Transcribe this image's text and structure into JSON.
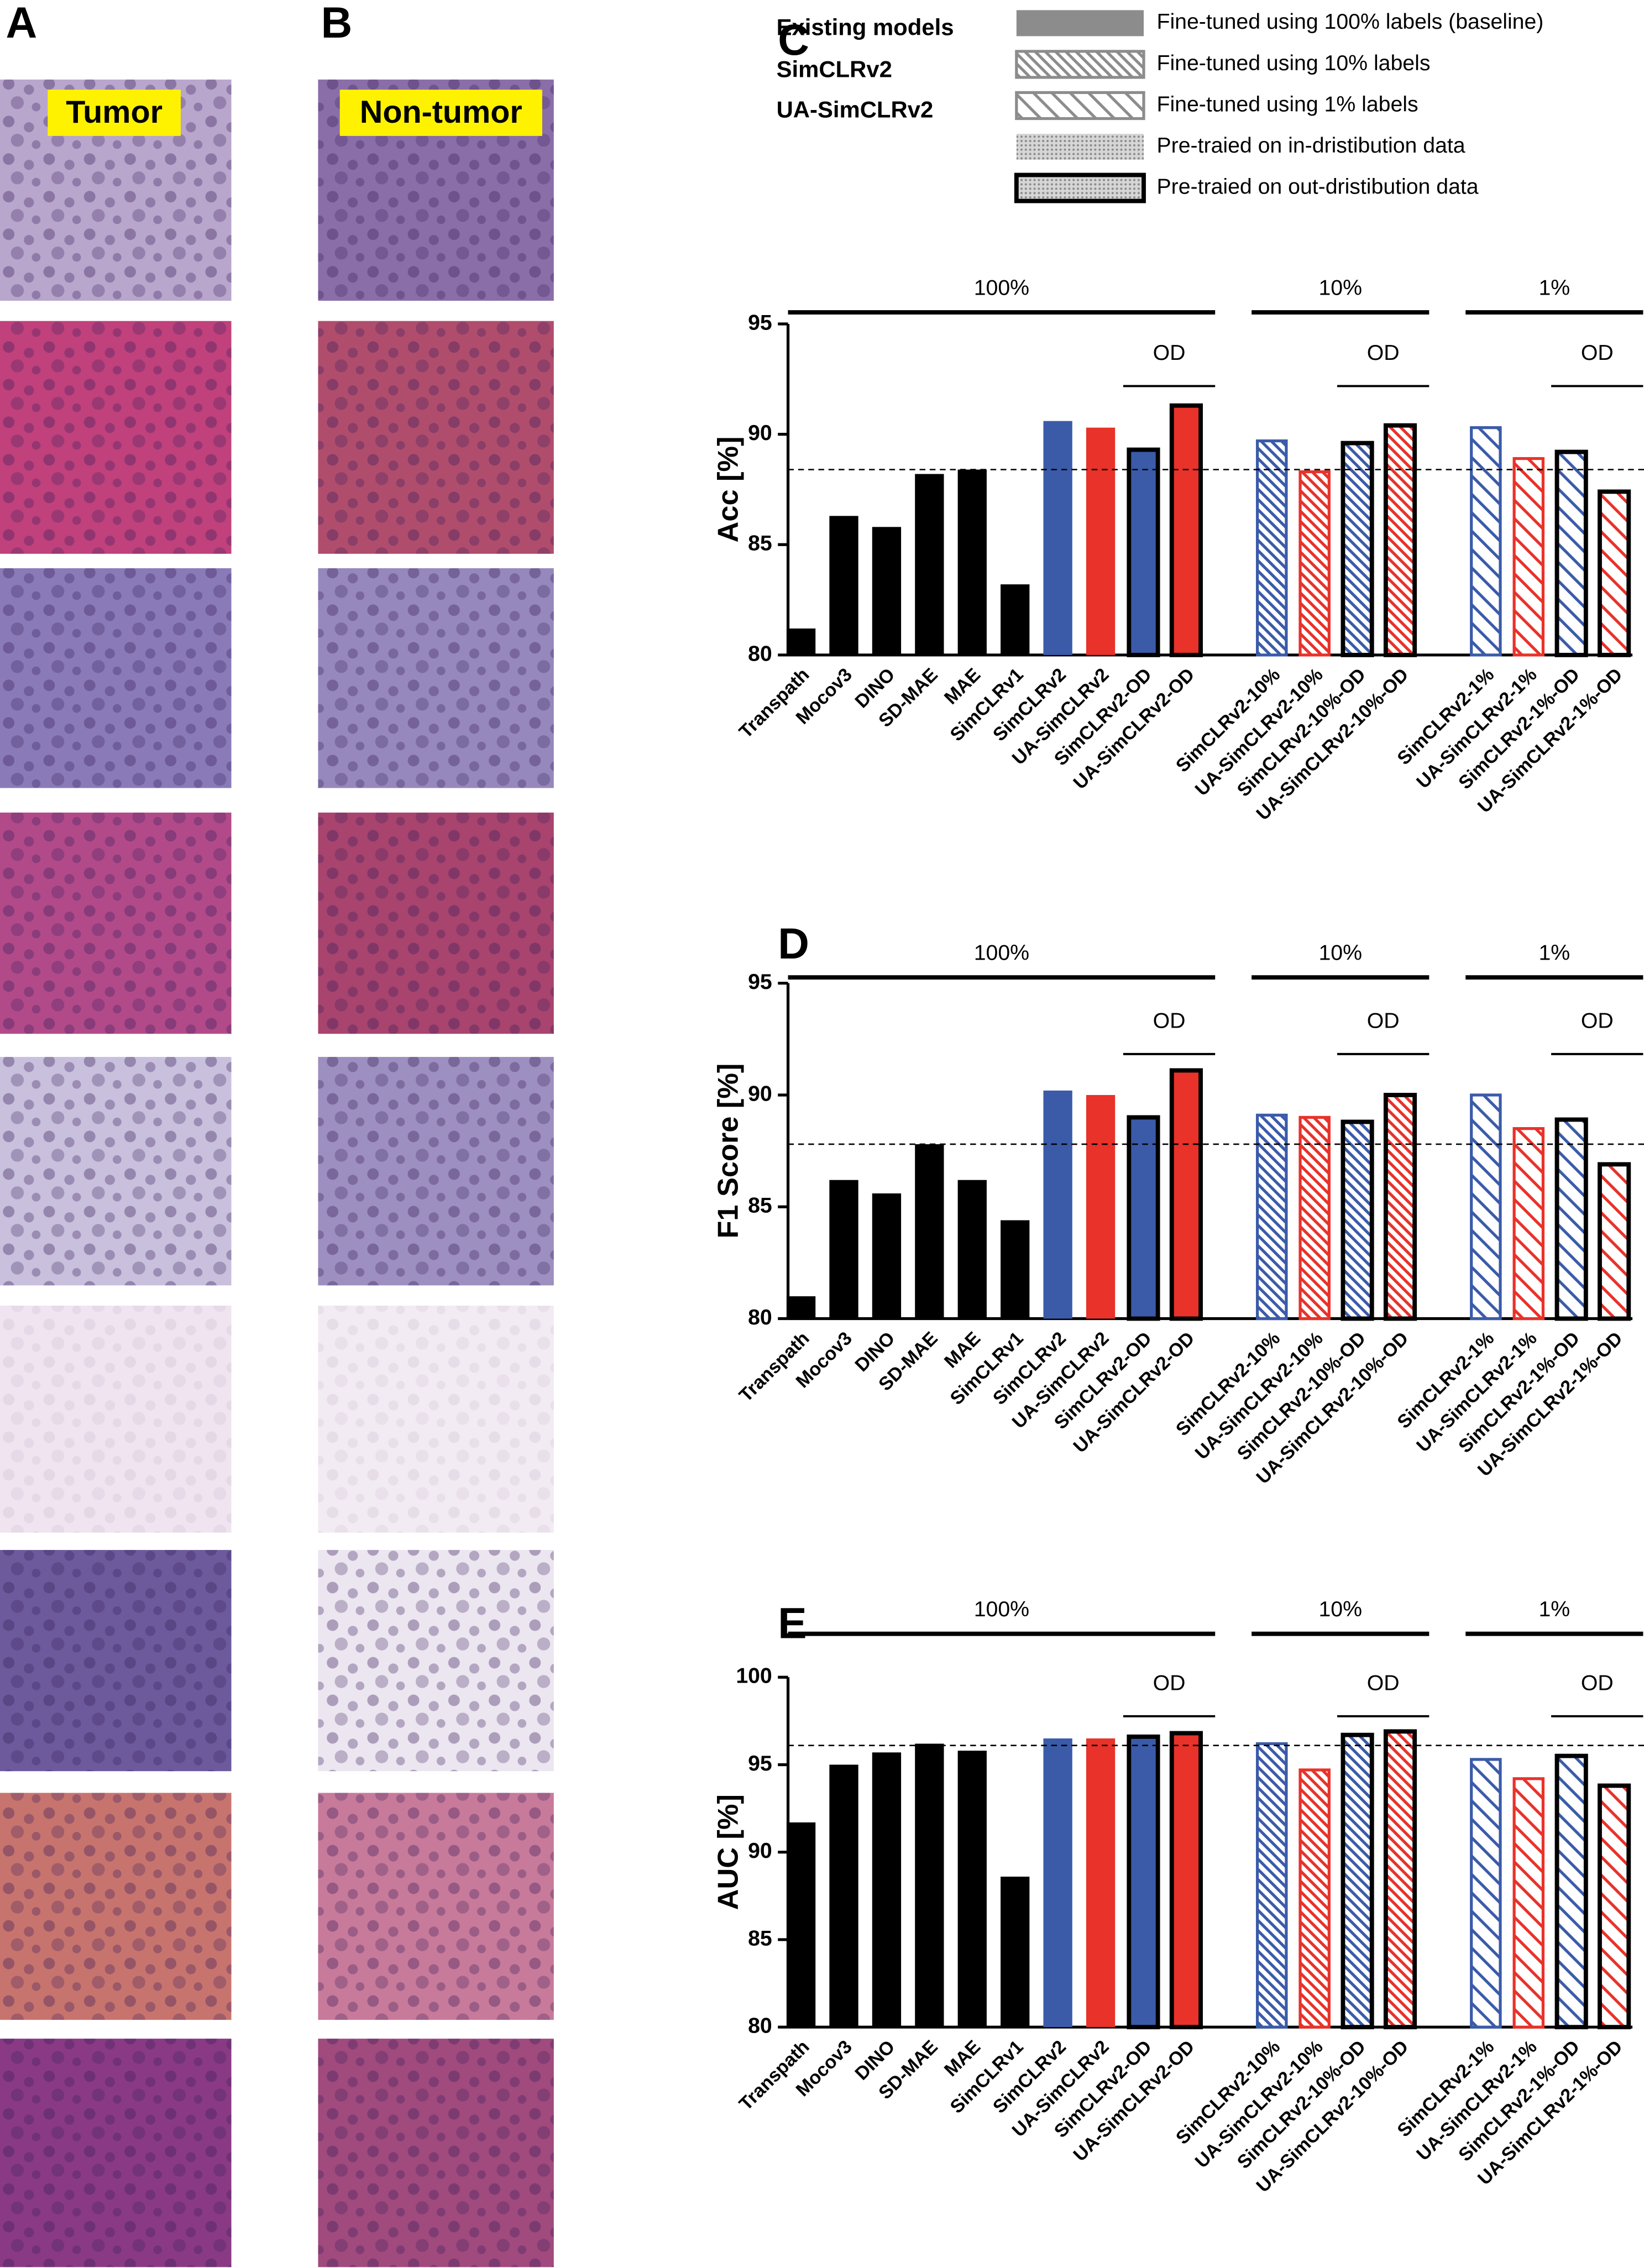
{
  "figure": {
    "panel_labels": [
      "A",
      "B"
    ],
    "tumor": "Tumor",
    "non_tumor": "Non-tumor"
  },
  "legend": {
    "models_title": "Existing models",
    "models": [
      {
        "name": "SimCLRv2",
        "color": "#3b5ba9"
      },
      {
        "name": "UA-SimCLRv2",
        "color": "#e8322a"
      }
    ],
    "styles": [
      {
        "label": "Fine-tuned using 100% labels (baseline)",
        "pattern": "solid"
      },
      {
        "label": "Fine-tuned using 10% labels",
        "pattern": "hatch10"
      },
      {
        "label": "Fine-tuned using 1% labels",
        "pattern": "hatch1"
      },
      {
        "label": "Pre-traied on in-dristibution data",
        "pattern": "dots"
      },
      {
        "label": "Pre-traied on out-dristibution data",
        "pattern": "dots-od"
      }
    ]
  },
  "chart_data": [
    {
      "type": "bar",
      "panel": "C",
      "y_label": "Acc [%]",
      "categories": [
        "Transpath",
        "Mocov3",
        "DINO",
        "SD-MAE",
        "MAE",
        "SimCLRv1",
        "SimCLRv2",
        "UA-SimCLRv2",
        "SimCLRv2-OD",
        "UA-SimCLRv2-OD",
        null,
        "SimCLRv2-10%",
        "UA-SimCLRv2-10%",
        "SimCLRv2-10%-OD",
        "UA-SimCLRv2-10%-OD",
        null,
        "SimCLRv2-1%",
        "UA-SimCLRv2-1%",
        "SimCLRv2-1%-OD",
        "UA-SimCLRv2-1%-OD"
      ],
      "values": [
        81.2,
        86.3,
        85.8,
        88.2,
        88.4,
        83.2,
        90.6,
        90.3,
        89.3,
        91.3,
        null,
        89.7,
        88.3,
        89.6,
        90.4,
        null,
        90.3,
        88.9,
        89.2,
        87.4
      ],
      "bar_colors": [
        "#000000",
        "#000000",
        "#000000",
        "#000000",
        "#000000",
        "#000000",
        "#3b5ba9",
        "#e8322a",
        "#3b5ba9",
        "#e8322a",
        null,
        "#3b5ba9",
        "#e8322a",
        "#3b5ba9",
        "#e8322a",
        null,
        "#3b5ba9",
        "#e8322a",
        "#3b5ba9",
        "#e8322a"
      ],
      "bar_patterns": [
        "solid",
        "solid",
        "solid",
        "solid",
        "solid",
        "solid",
        "solid",
        "solid",
        "solid-od",
        "solid-od",
        null,
        "hatch10",
        "hatch10",
        "hatch10-od",
        "hatch10-od",
        null,
        "hatch1",
        "hatch1",
        "hatch1-od",
        "hatch1-od"
      ],
      "group_labels": [
        "100%",
        "10%",
        "1%"
      ],
      "od_label": "OD",
      "baseline": 88.4,
      "ylim": [
        80,
        95
      ],
      "yticks": [
        80,
        85,
        90,
        95
      ],
      "grid": false
    },
    {
      "type": "bar",
      "panel": "D",
      "y_label": "F1 Score [%]",
      "categories": [
        "Transpath",
        "Mocov3",
        "DINO",
        "SD-MAE",
        "MAE",
        "SimCLRv1",
        "SimCLRv2",
        "UA-SimCLRv2",
        "SimCLRv2-OD",
        "UA-SimCLRv2-OD",
        null,
        "SimCLRv2-10%",
        "UA-SimCLRv2-10%",
        "SimCLRv2-10%-OD",
        "UA-SimCLRv2-10%-OD",
        null,
        "SimCLRv2-1%",
        "UA-SimCLRv2-1%",
        "SimCLRv2-1%-OD",
        "UA-SimCLRv2-1%-OD"
      ],
      "values": [
        81.0,
        86.2,
        85.6,
        87.8,
        86.2,
        84.4,
        90.2,
        90.0,
        89.0,
        91.1,
        null,
        89.1,
        89.0,
        88.8,
        90.0,
        null,
        90.0,
        88.5,
        88.9,
        86.9
      ],
      "bar_colors": [
        "#000000",
        "#000000",
        "#000000",
        "#000000",
        "#000000",
        "#000000",
        "#3b5ba9",
        "#e8322a",
        "#3b5ba9",
        "#e8322a",
        null,
        "#3b5ba9",
        "#e8322a",
        "#3b5ba9",
        "#e8322a",
        null,
        "#3b5ba9",
        "#e8322a",
        "#3b5ba9",
        "#e8322a"
      ],
      "bar_patterns": [
        "solid",
        "solid",
        "solid",
        "solid",
        "solid",
        "solid",
        "solid",
        "solid",
        "solid-od",
        "solid-od",
        null,
        "hatch10",
        "hatch10",
        "hatch10-od",
        "hatch10-od",
        null,
        "hatch1",
        "hatch1",
        "hatch1-od",
        "hatch1-od"
      ],
      "group_labels": [
        "100%",
        "10%",
        "1%"
      ],
      "od_label": "OD",
      "baseline": 87.8,
      "ylim": [
        80,
        95
      ],
      "yticks": [
        80,
        85,
        90,
        95
      ],
      "grid": false
    },
    {
      "type": "bar",
      "panel": "E",
      "y_label": "AUC [%]",
      "categories": [
        "Transpath",
        "Mocov3",
        "DINO",
        "SD-MAE",
        "MAE",
        "SimCLRv1",
        "SimCLRv2",
        "UA-SimCLRv2",
        "SimCLRv2-OD",
        "UA-SimCLRv2-OD",
        null,
        "SimCLRv2-10%",
        "UA-SimCLRv2-10%",
        "SimCLRv2-10%-OD",
        "UA-SimCLRv2-10%-OD",
        null,
        "SimCLRv2-1%",
        "UA-SimCLRv2-1%",
        "SimCLRv2-1%-OD",
        "UA-SimCLRv2-1%-OD"
      ],
      "values": [
        91.7,
        95.0,
        95.7,
        96.2,
        95.8,
        88.6,
        96.5,
        96.5,
        96.6,
        96.8,
        null,
        96.2,
        94.7,
        96.7,
        96.9,
        null,
        95.3,
        94.2,
        95.5,
        93.8
      ],
      "bar_colors": [
        "#000000",
        "#000000",
        "#000000",
        "#000000",
        "#000000",
        "#000000",
        "#3b5ba9",
        "#e8322a",
        "#3b5ba9",
        "#e8322a",
        null,
        "#3b5ba9",
        "#e8322a",
        "#3b5ba9",
        "#e8322a",
        null,
        "#3b5ba9",
        "#e8322a",
        "#3b5ba9",
        "#e8322a"
      ],
      "bar_patterns": [
        "solid",
        "solid",
        "solid",
        "solid",
        "solid",
        "solid",
        "solid",
        "solid",
        "solid-od",
        "solid-od",
        null,
        "hatch10",
        "hatch10",
        "hatch10-od",
        "hatch10-od",
        null,
        "hatch1",
        "hatch1",
        "hatch1-od",
        "hatch1-od"
      ],
      "group_labels": [
        "100%",
        "10%",
        "1%"
      ],
      "od_label": "OD",
      "baseline": 96.1,
      "ylim": [
        80,
        100
      ],
      "yticks": [
        80,
        85,
        90,
        95,
        100
      ],
      "grid": false
    }
  ]
}
